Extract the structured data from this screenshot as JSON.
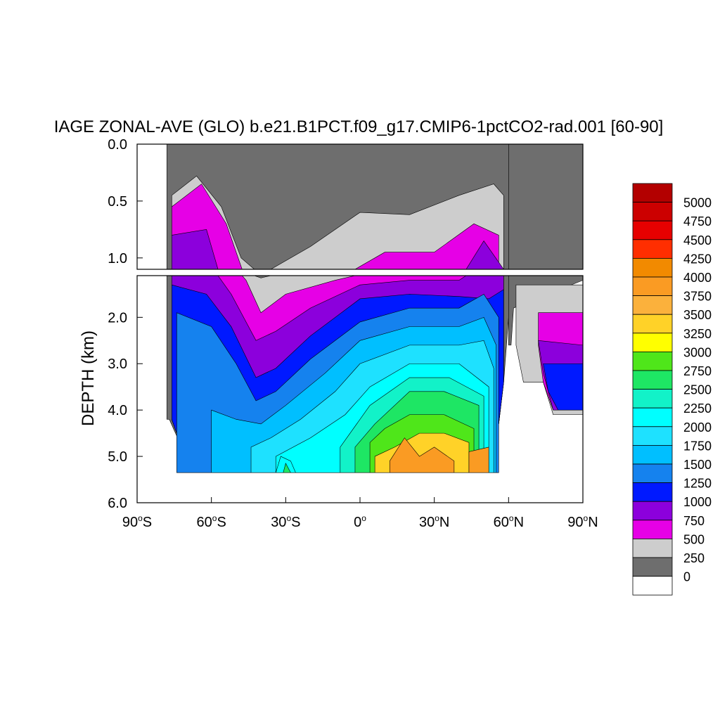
{
  "chart_data": {
    "type": "heatmap",
    "title": "IAGE ZONAL-AVE (GLO) b.e21.B1PCT.f09_g17.CMIP6-1pctCO2-rad.001 [60-90]",
    "ylabel": "DEPTH (km)",
    "x_ticks": [
      {
        "value": -90,
        "deg": "90",
        "hem": "S"
      },
      {
        "value": -60,
        "deg": "60",
        "hem": "S"
      },
      {
        "value": -30,
        "deg": "30",
        "hem": "S"
      },
      {
        "value": 0,
        "deg": "0",
        "hem": ""
      },
      {
        "value": 30,
        "deg": "30",
        "hem": "N"
      },
      {
        "value": 60,
        "deg": "60",
        "hem": "N"
      },
      {
        "value": 90,
        "deg": "90",
        "hem": "N"
      }
    ],
    "upper_panel": {
      "ylim": [
        0,
        1.1
      ],
      "yticks": [
        "0.0",
        "0.5",
        "1.0"
      ],
      "ytick_values": [
        0,
        0.5,
        1.0
      ]
    },
    "lower_panel": {
      "ylim": [
        1.1,
        6.0
      ],
      "yticks": [
        "2.0",
        "3.0",
        "4.0",
        "5.0",
        "6.0"
      ],
      "ytick_values": [
        2,
        3,
        4,
        5,
        6
      ]
    },
    "xlim": [
      -90,
      90
    ],
    "colorbar": {
      "labels": [
        "5000",
        "4750",
        "4500",
        "4250",
        "4000",
        "3750",
        "3500",
        "3250",
        "3000",
        "2750",
        "2500",
        "2250",
        "2000",
        "1750",
        "1500",
        "1250",
        "1000",
        "750",
        "500",
        "250",
        "0"
      ],
      "colors": [
        "#b30000",
        "#cc0000",
        "#e60000",
        "#ff2e00",
        "#f28a00",
        "#fa9b23",
        "#fbb13c",
        "#ffd228",
        "#ffff00",
        "#4fe61a",
        "#1ee664",
        "#12f2c8",
        "#00ffff",
        "#1ee1ff",
        "#00bfff",
        "#1582ee",
        "#0019ff",
        "#8c00dc",
        "#e600e6",
        "#cdcdcd",
        "#6e6e6e",
        "#ffffff"
      ]
    },
    "ocean_outline": {
      "note": "latitude (deg) vs depth (km) of sampled contour boundaries",
      "layers": [
        {
          "level": 0,
          "top": [
            [
              -78,
              0
            ],
            [
              -78,
              0.3
            ],
            [
              -70,
              0.2
            ],
            [
              -60,
              0.15
            ],
            [
              -50,
              0.6
            ],
            [
              -40,
              0.95
            ],
            [
              -20,
              0.7
            ],
            [
              0,
              0.45
            ],
            [
              8,
              0.3
            ],
            [
              20,
              0.42
            ],
            [
              40,
              0.32
            ],
            [
              55,
              0.25
            ],
            [
              60,
              0.3
            ]
          ]
        },
        {
          "level": 250,
          "top": [
            [
              -76,
              0.45
            ],
            [
              -66,
              0.28
            ],
            [
              -56,
              0.55
            ],
            [
              -48,
              1.0
            ],
            [
              -40,
              1.15
            ],
            [
              -20,
              0.9
            ],
            [
              0,
              0.6
            ],
            [
              20,
              0.62
            ],
            [
              40,
              0.45
            ],
            [
              54,
              0.35
            ],
            [
              58,
              0.45
            ]
          ]
        },
        {
          "level": 500,
          "top": [
            [
              -76,
              0.55
            ],
            [
              -64,
              0.35
            ],
            [
              -54,
              0.7
            ],
            [
              -46,
              1.2
            ],
            [
              -40,
              1.9
            ],
            [
              -30,
              1.5
            ],
            [
              -10,
              1.2
            ],
            [
              10,
              0.95
            ],
            [
              30,
              0.95
            ],
            [
              46,
              0.7
            ],
            [
              56,
              0.8
            ]
          ]
        },
        {
          "level": 750,
          "top": [
            [
              -76,
              0.8
            ],
            [
              -62,
              0.75
            ],
            [
              -52,
              1.5
            ],
            [
              -42,
              2.5
            ],
            [
              -34,
              2.3
            ],
            [
              -20,
              1.8
            ],
            [
              0,
              1.3
            ],
            [
              20,
              1.2
            ],
            [
              40,
              1.2
            ],
            [
              50,
              0.85
            ],
            [
              58,
              1.1
            ]
          ]
        },
        {
          "level": 1000,
          "top": [
            [
              -76,
              1.3
            ],
            [
              -62,
              1.5
            ],
            [
              -52,
              2.2
            ],
            [
              -42,
              3.3
            ],
            [
              -34,
              3.1
            ],
            [
              -20,
              2.4
            ],
            [
              0,
              1.6
            ],
            [
              20,
              1.5
            ],
            [
              40,
              1.55
            ],
            [
              52,
              1.6
            ],
            [
              58,
              1.4
            ]
          ]
        }
      ],
      "bottom": [
        [
          -77,
          4.2
        ],
        [
          -72,
          4.8
        ],
        [
          -62,
          5.3
        ],
        [
          -50,
          5.35
        ],
        [
          -30,
          5.35
        ],
        [
          0,
          5.35
        ],
        [
          30,
          5.35
        ],
        [
          52,
          5.35
        ],
        [
          56,
          4.3
        ],
        [
          58,
          3.4
        ],
        [
          60,
          2.0
        ]
      ]
    }
  }
}
